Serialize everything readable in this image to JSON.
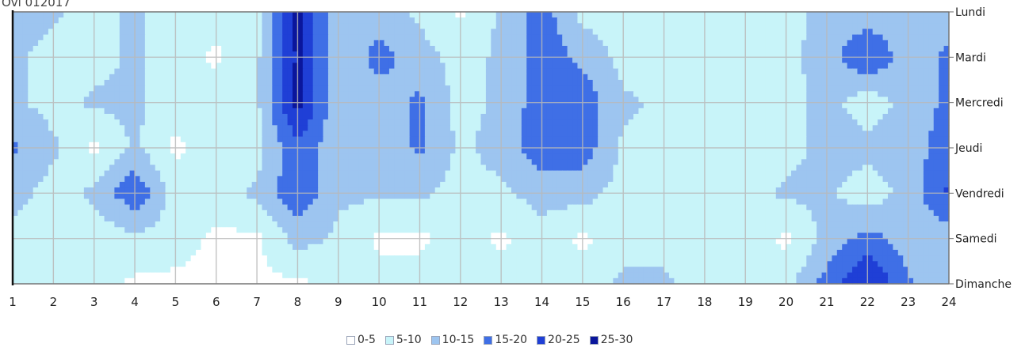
{
  "corner_caption": "Ovi 012017",
  "chart_data": {
    "type": "heatmap",
    "title": "",
    "xlabel": "",
    "ylabel": "",
    "x": [
      "1",
      "2",
      "3",
      "4",
      "5",
      "6",
      "7",
      "8",
      "9",
      "10",
      "11",
      "12",
      "13",
      "14",
      "15",
      "16",
      "17",
      "18",
      "19",
      "20",
      "21",
      "22",
      "23",
      "24"
    ],
    "y": [
      "Lundi",
      "Mardi",
      "Mercredi",
      "Jeudi",
      "Vendredi",
      "Samedi",
      "Dimanche"
    ],
    "grid": true,
    "legend_position": "bottom",
    "bins": [
      {
        "label": "0-5",
        "min": 0,
        "max": 5,
        "color": "#ffffff"
      },
      {
        "label": "5-10",
        "min": 5,
        "max": 10,
        "color": "#c8f4f9"
      },
      {
        "label": "10-15",
        "min": 10,
        "max": 15,
        "color": "#9dc5f0"
      },
      {
        "label": "15-20",
        "min": 15,
        "max": 20,
        "color": "#3f6fe6"
      },
      {
        "label": "20-25",
        "min": 20,
        "max": 25,
        "color": "#1f3fd6"
      },
      {
        "label": "25-30",
        "min": 25,
        "max": 30,
        "color": "#0a169c"
      }
    ],
    "values": [
      [
        14,
        11,
        8,
        11,
        7,
        7,
        7,
        27,
        11,
        12,
        9,
        4,
        11,
        18,
        8,
        8,
        8,
        8,
        8,
        8,
        12,
        12,
        12,
        12
      ],
      [
        11,
        8,
        8,
        11,
        7,
        4,
        9,
        26,
        11,
        17,
        12,
        8,
        11,
        18,
        14,
        8,
        8,
        8,
        8,
        8,
        13,
        20,
        12,
        16
      ],
      [
        11,
        8,
        11,
        11,
        7,
        8,
        9,
        27,
        11,
        12,
        16,
        8,
        11,
        18,
        18,
        11,
        9,
        8,
        8,
        8,
        12,
        7,
        12,
        16
      ],
      [
        16,
        11,
        4,
        11,
        4,
        8,
        8,
        19,
        11,
        12,
        16,
        9,
        12,
        18,
        18,
        9,
        8,
        8,
        8,
        8,
        12,
        12,
        12,
        18
      ],
      [
        12,
        8,
        11,
        19,
        8,
        8,
        11,
        19,
        11,
        11,
        11,
        8,
        9,
        12,
        12,
        8,
        8,
        8,
        8,
        11,
        11,
        7,
        12,
        21
      ],
      [
        8,
        8,
        7,
        9,
        7,
        4,
        4,
        12,
        9,
        4,
        4,
        7,
        4,
        8,
        4,
        8,
        8,
        8,
        8,
        4,
        12,
        17,
        12,
        12
      ],
      [
        8,
        7,
        7,
        4,
        4,
        4,
        4,
        4,
        7,
        7,
        7,
        8,
        8,
        8,
        8,
        11,
        11,
        8,
        8,
        8,
        17,
        26,
        16,
        11
      ]
    ]
  }
}
